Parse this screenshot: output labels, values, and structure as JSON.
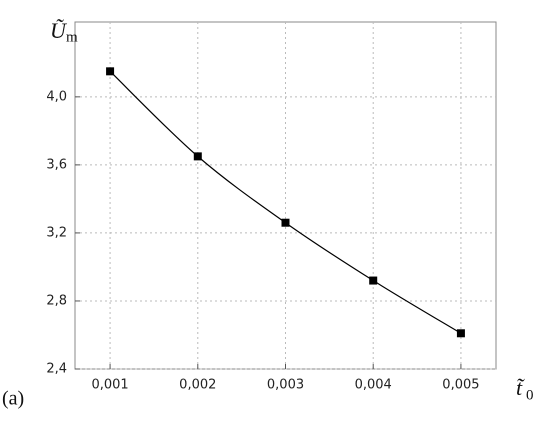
{
  "chart_data": {
    "type": "line",
    "panel_label": "(a)",
    "ylabel": "Ũ",
    "ylabel_sub": "m",
    "xlabel": "t̃",
    "xlabel_sub": "0",
    "x": [
      0.001,
      0.002,
      0.003,
      0.004,
      0.005
    ],
    "series": [
      {
        "color": "#000000",
        "values": [
          4.15,
          3.65,
          3.26,
          2.92,
          2.61
        ]
      }
    ],
    "xlim": [
      0.0006,
      0.0054
    ],
    "ylim": [
      2.4,
      4.44
    ],
    "xticks": [
      {
        "value": 0.001,
        "label": "0,001"
      },
      {
        "value": 0.002,
        "label": "0,002"
      },
      {
        "value": 0.003,
        "label": "0,003"
      },
      {
        "value": 0.004,
        "label": "0,004"
      },
      {
        "value": 0.005,
        "label": "0,005"
      }
    ],
    "yticks": [
      {
        "value": 2.4,
        "label": "2,4"
      },
      {
        "value": 2.8,
        "label": "2,8"
      },
      {
        "value": 3.2,
        "label": "3,2"
      },
      {
        "value": 3.6,
        "label": "3,6"
      },
      {
        "value": 4.0,
        "label": "4,0"
      }
    ],
    "grid": true
  }
}
